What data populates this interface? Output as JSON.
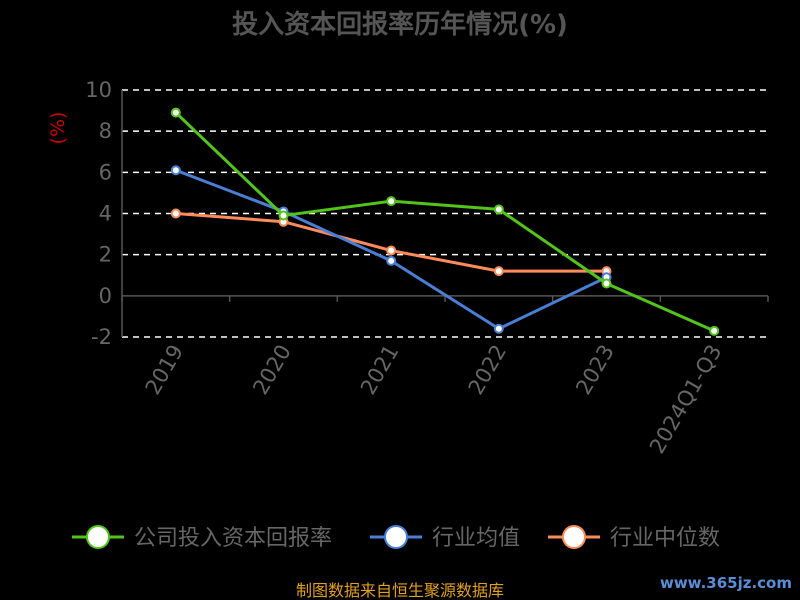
{
  "chart_data": {
    "type": "line",
    "title": "投入资本回报率历年情况(%)",
    "ylabel": "(%)",
    "categories": [
      "2019",
      "2020",
      "2021",
      "2022",
      "2023",
      "2024Q1-Q3"
    ],
    "ylim": [
      -2,
      10
    ],
    "yticks": [
      -2,
      0,
      2,
      4,
      6,
      8,
      10
    ],
    "grid": true,
    "legend_position": "bottom",
    "series": [
      {
        "name": "公司投入资本回报率",
        "color": "#52c41a",
        "values": [
          8.9,
          3.9,
          4.6,
          4.2,
          0.6,
          -1.7
        ]
      },
      {
        "name": "行业均值",
        "color": "#4a7fd6",
        "values": [
          6.1,
          4.1,
          1.7,
          -1.6,
          0.9,
          null
        ]
      },
      {
        "name": "行业中位数",
        "color": "#ff8c5a",
        "values": [
          4.0,
          3.6,
          2.2,
          1.2,
          1.2,
          null
        ]
      }
    ],
    "source": "制图数据来自恒生聚源数据库",
    "watermark": "www.365jz.com"
  }
}
